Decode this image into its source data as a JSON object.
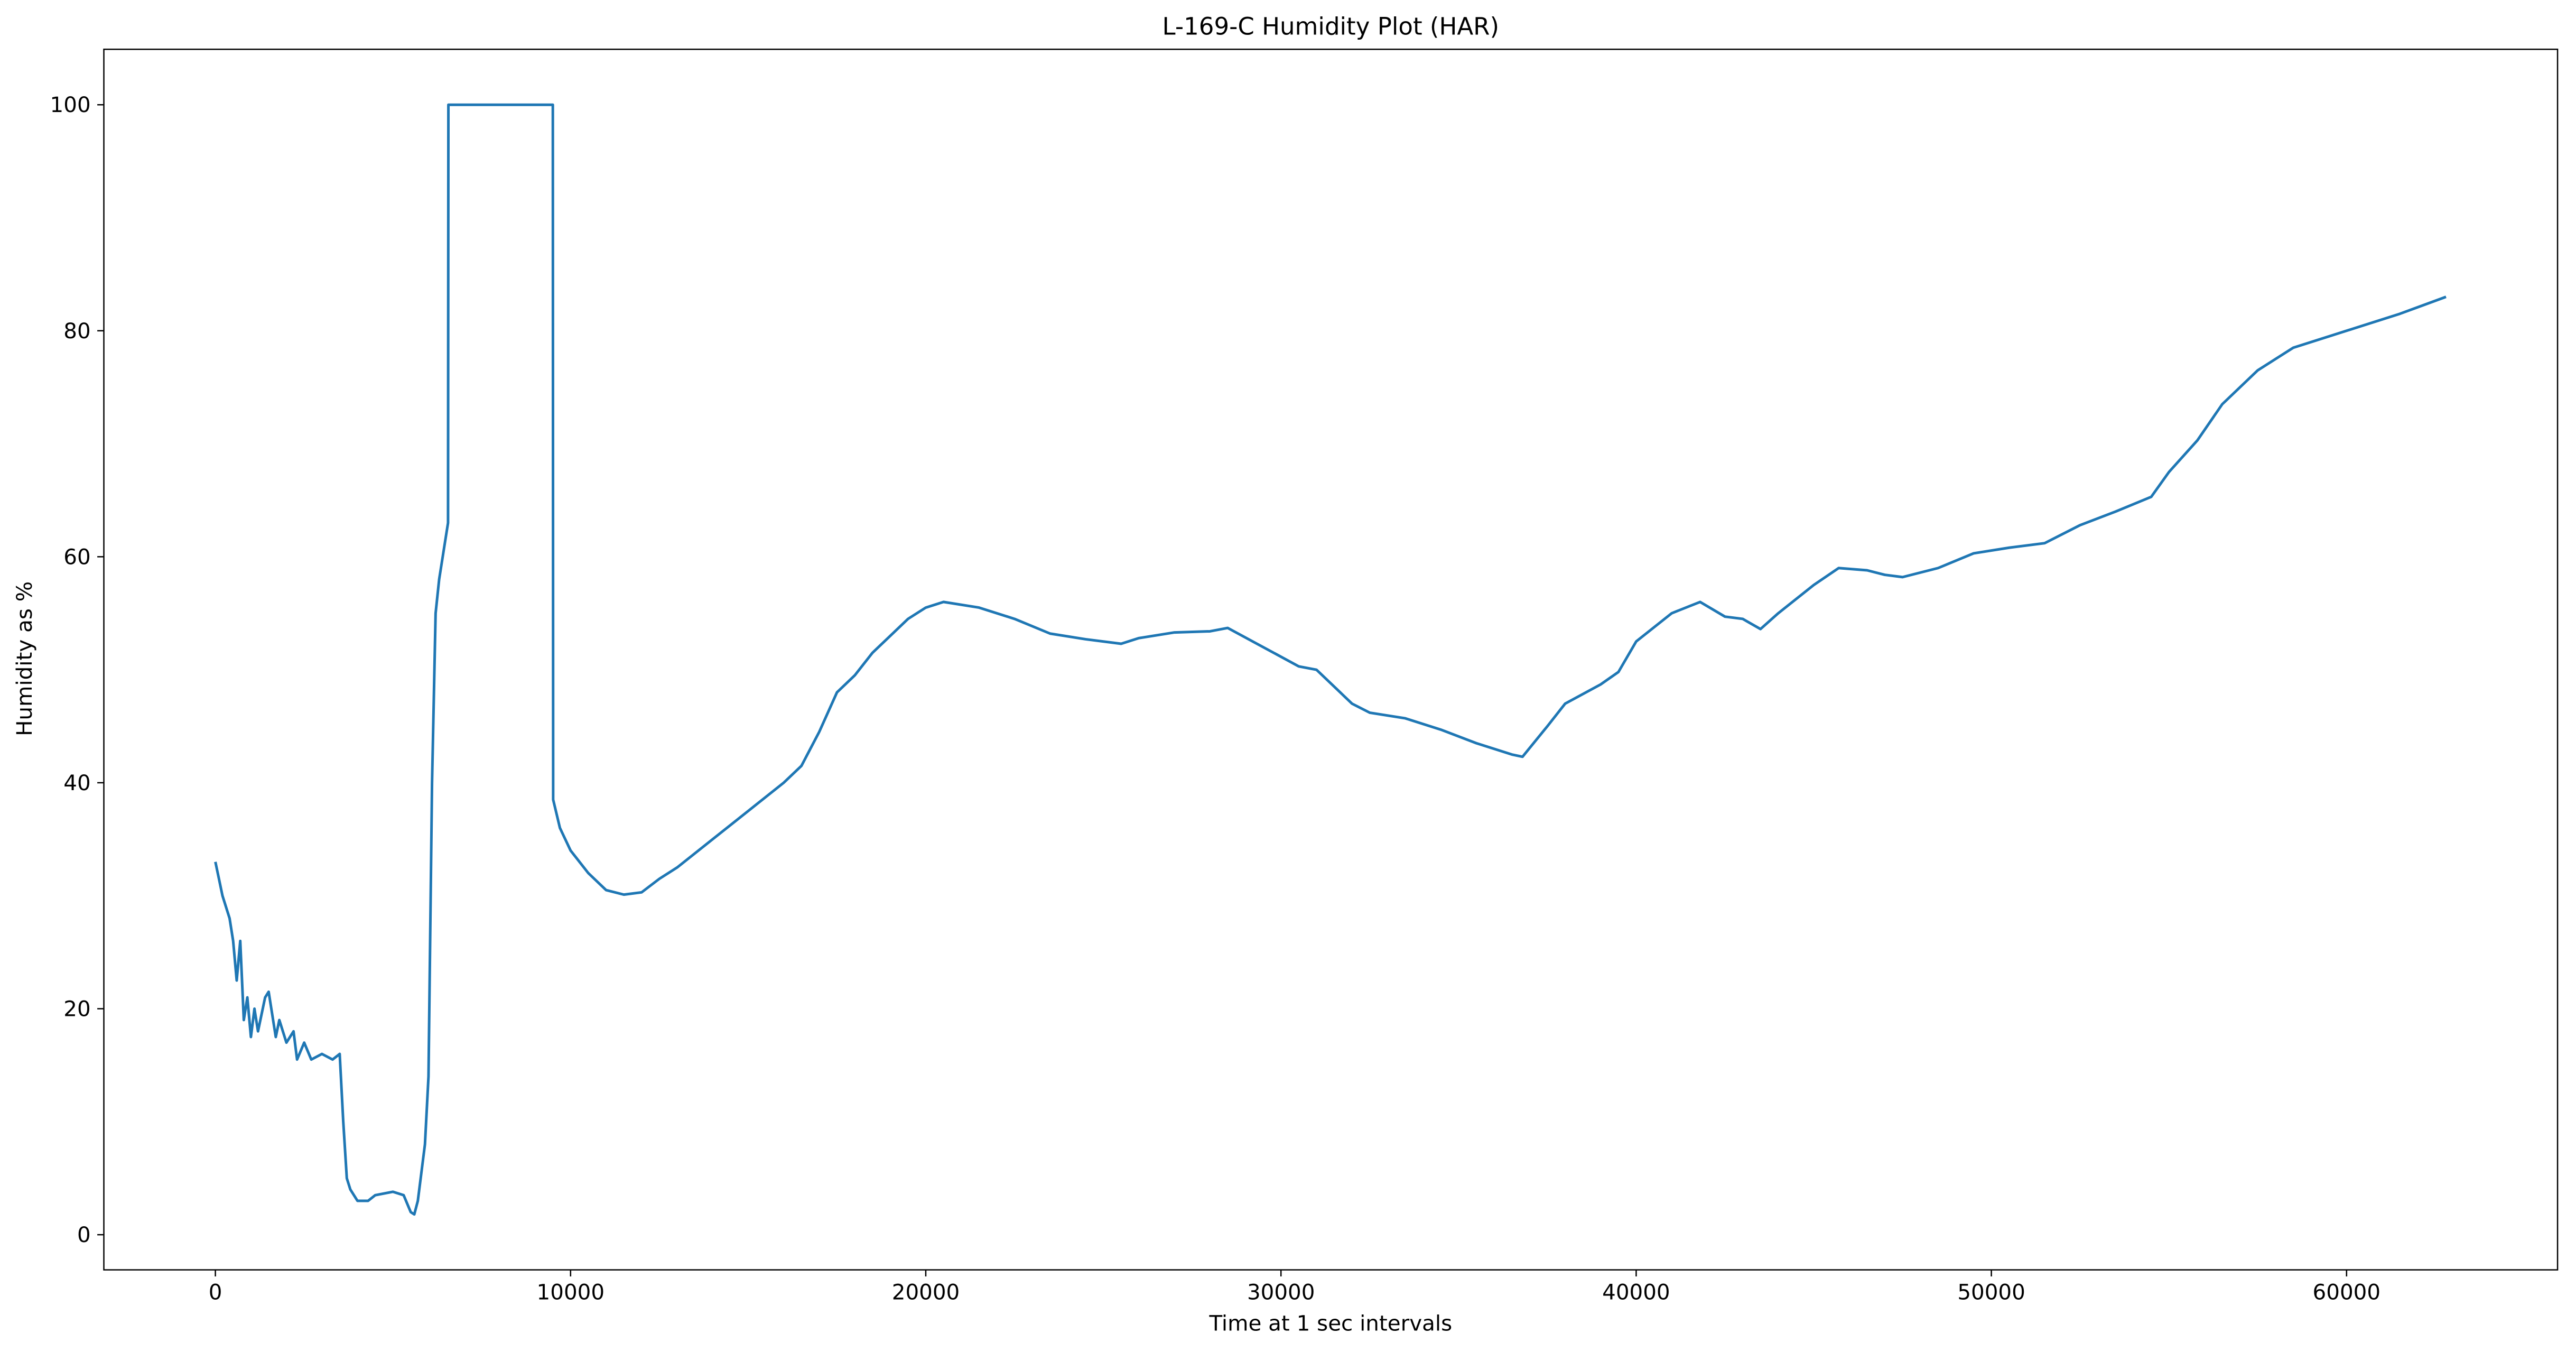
{
  "chart_data": {
    "type": "line",
    "title": "L-169-C Humidity Plot (HAR)",
    "xlabel": "Time at 1 sec intervals",
    "ylabel": "Humidity as %",
    "color": "#1f77b4",
    "x": [
      0,
      100,
      200,
      400,
      500,
      600,
      700,
      800,
      900,
      1000,
      1100,
      1200,
      1400,
      1500,
      1700,
      1800,
      2000,
      2200,
      2300,
      2500,
      2700,
      3000,
      3300,
      3500,
      3600,
      3700,
      3800,
      4000,
      4300,
      4500,
      5000,
      5300,
      5500,
      5600,
      5700,
      5900,
      6000,
      6100,
      6200,
      6300,
      6450,
      6550,
      6560,
      9500,
      9510,
      9700,
      10000,
      10500,
      11000,
      11500,
      12000,
      12500,
      13000,
      14000,
      15000,
      16000,
      16500,
      17000,
      17500,
      18000,
      18500,
      19000,
      19500,
      20000,
      20500,
      21500,
      22500,
      23500,
      24500,
      25500,
      26000,
      27000,
      28000,
      28500,
      29500,
      30500,
      31000,
      31500,
      32000,
      32500,
      33500,
      34500,
      35500,
      36500,
      36800,
      37500,
      38000,
      39000,
      39500,
      40000,
      41000,
      41800,
      42500,
      43000,
      43500,
      44000,
      45000,
      45700,
      46500,
      47000,
      47500,
      48500,
      49500,
      50500,
      51500,
      52500,
      53500,
      54500,
      55000,
      55800,
      56500,
      57500,
      58500,
      59500,
      60500,
      61500,
      62800
    ],
    "values": [
      33,
      31.5,
      30,
      28,
      26,
      22.5,
      26,
      19,
      21,
      17.5,
      20,
      18,
      21,
      21.5,
      17.5,
      19,
      17,
      18,
      15.5,
      17,
      15.5,
      16,
      15.5,
      16,
      10,
      5,
      4,
      3,
      3,
      3.5,
      3.8,
      3.5,
      2,
      1.8,
      3,
      8,
      14,
      40,
      55,
      58,
      61,
      63,
      100,
      100,
      38.5,
      36,
      34,
      32,
      30.5,
      30.1,
      30.3,
      31.5,
      32.5,
      35,
      37.5,
      40,
      41.5,
      44.5,
      48,
      49.5,
      51.5,
      53,
      54.5,
      55.5,
      56,
      55.5,
      54.5,
      53.2,
      52.7,
      52.3,
      52.8,
      53.3,
      53.4,
      53.7,
      52,
      50.3,
      50,
      48.5,
      47,
      46.2,
      45.7,
      44.7,
      43.5,
      42.5,
      42.3,
      45,
      47,
      48.7,
      49.8,
      52.5,
      55,
      56,
      54.7,
      54.5,
      53.6,
      55,
      57.5,
      59,
      58.8,
      58.4,
      58.2,
      59,
      60.3,
      60.8,
      61.2,
      62.8,
      64,
      65.3,
      67.5,
      70.3,
      73.5,
      76.5,
      78.5,
      79.5,
      80.5,
      81.5,
      83
    ],
    "xlim": [
      -3140,
      65940
    ],
    "ylim": [
      -3.11,
      104.91
    ],
    "xticks": [
      0,
      10000,
      20000,
      30000,
      40000,
      50000,
      60000
    ],
    "yticks": [
      0,
      20,
      40,
      60,
      80,
      100
    ]
  }
}
